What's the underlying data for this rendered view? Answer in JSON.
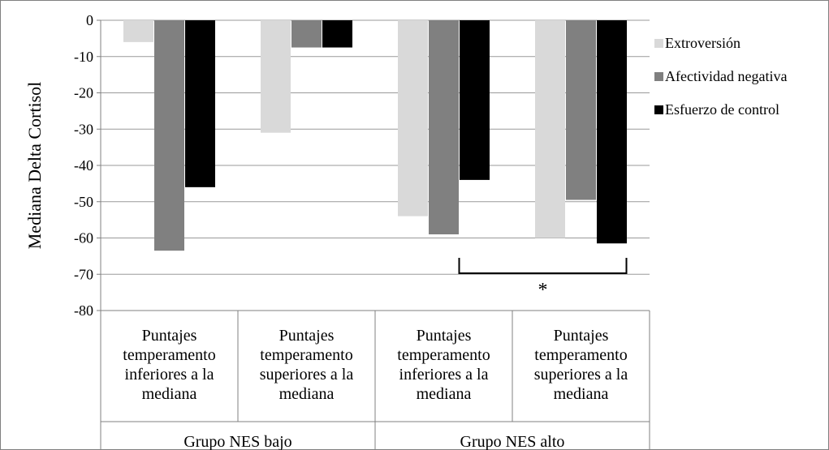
{
  "chart_data": {
    "type": "bar",
    "title": "",
    "ylabel": "Mediana Delta Cortisol",
    "ylim": [
      -80,
      0
    ],
    "yticks": [
      0,
      -10,
      -20,
      -30,
      -40,
      -50,
      -60,
      -70,
      -80
    ],
    "grid": true,
    "legend_position": "right",
    "categories": [
      [
        "Puntajes",
        "temperamento",
        "inferiores a la",
        "mediana"
      ],
      [
        "Puntajes",
        "temperamento",
        "superiores a la",
        "mediana"
      ],
      [
        "Puntajes",
        "temperamento",
        "inferiores a la",
        "mediana"
      ],
      [
        "Puntajes",
        "temperamento",
        "superiores a la",
        "mediana"
      ]
    ],
    "groups": [
      "Grupo NES bajo",
      "Grupo NES alto"
    ],
    "series": [
      {
        "name": "Extroversión",
        "color": "#d9d9d9",
        "values": [
          -6,
          -31,
          -54,
          -60
        ]
      },
      {
        "name": "Afectividad negativa",
        "color": "#808080",
        "values": [
          -63.5,
          -7.5,
          -59,
          -49.5
        ]
      },
      {
        "name": "Esfuerzo de control",
        "color": "#000000",
        "values": [
          -46,
          -7.5,
          -44,
          -61.5
        ]
      }
    ],
    "annotation": {
      "text": "*",
      "between_categories": [
        2,
        3
      ]
    }
  }
}
